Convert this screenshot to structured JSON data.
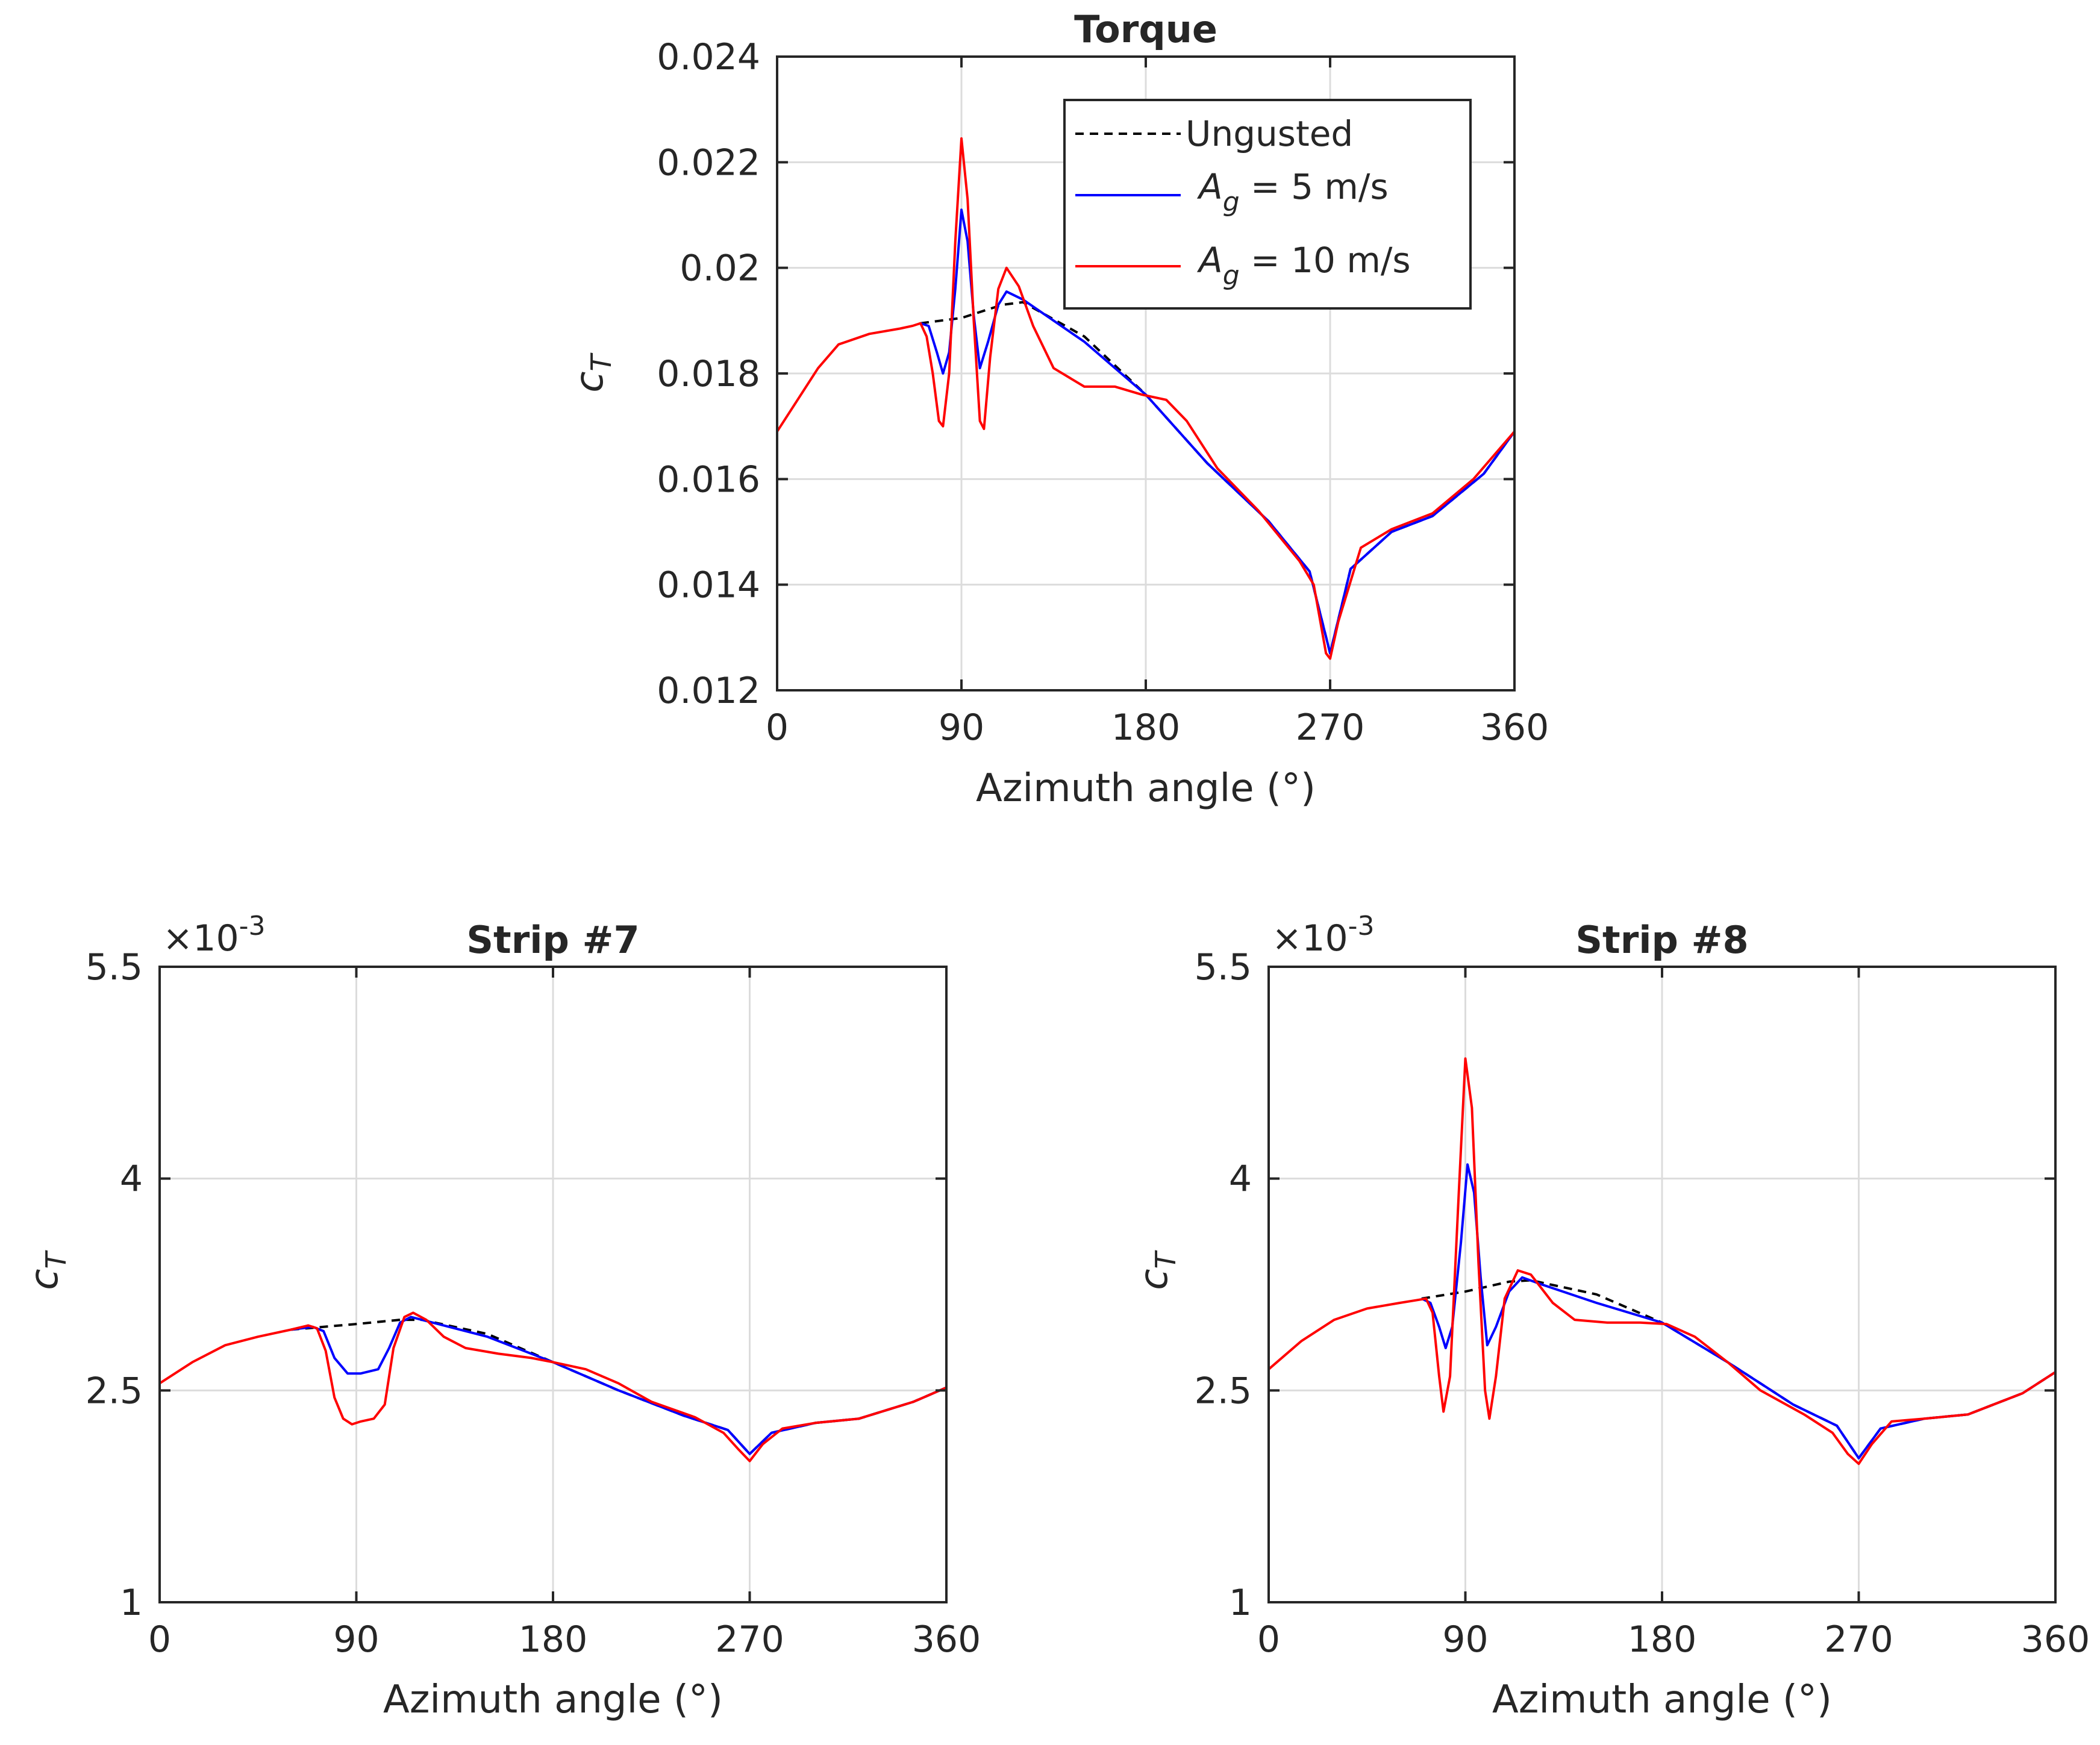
{
  "legend": {
    "entries": [
      {
        "label": "Ungusted",
        "color": "#000000",
        "dash": true
      },
      {
        "label_main": "A",
        "label_sub": "g",
        "label_rest": " = 5 m/s",
        "color": "#0000ff",
        "dash": false
      },
      {
        "label_main": "A",
        "label_sub": "g",
        "label_rest": " = 10 m/s",
        "color": "#ff0000",
        "dash": false
      }
    ]
  },
  "chart_data": [
    {
      "type": "line",
      "title": "Torque",
      "xlabel": "Azimuth angle (°)",
      "ylabel_main": "c",
      "ylabel_sub": "T",
      "multiplier": "",
      "xlim": [
        0,
        360
      ],
      "ylim": [
        0.012,
        0.024
      ],
      "xticks": [
        0,
        90,
        180,
        270,
        360
      ],
      "xtick_labels": [
        "0",
        "90",
        "180",
        "270",
        "360"
      ],
      "yticks": [
        0.012,
        0.014,
        0.016,
        0.018,
        0.02,
        0.022,
        0.024
      ],
      "ytick_labels": [
        "0.012",
        "0.014",
        "0.016",
        "0.018",
        "0.02",
        "0.022",
        "0.024"
      ],
      "grid": true,
      "legend_position": "top-right",
      "series": [
        {
          "name": "Ungusted",
          "color": "#000000",
          "dash": true,
          "points": [
            [
              70,
              0.01895
            ],
            [
              90,
              0.01905
            ],
            [
              110,
              0.0193
            ],
            [
              120,
              0.01935
            ],
            [
              150,
              0.0187
            ],
            [
              180,
              0.0176
            ],
            [
              210,
              0.0163
            ],
            [
              240,
              0.0152
            ],
            [
              260,
              0.01425
            ],
            [
              270,
              0.0127
            ],
            [
              280,
              0.0143
            ],
            [
              300,
              0.015
            ],
            [
              320,
              0.0153
            ],
            [
              345,
              0.0161
            ],
            [
              360,
              0.0169
            ]
          ]
        },
        {
          "name": "A_g = 5 m/s",
          "color": "#0000ff",
          "dash": false,
          "points": [
            [
              70,
              0.01895
            ],
            [
              74,
              0.0189
            ],
            [
              78,
              0.0184
            ],
            [
              81,
              0.018
            ],
            [
              84,
              0.0184
            ],
            [
              87,
              0.0196
            ],
            [
              90,
              0.0211
            ],
            [
              93,
              0.0205
            ],
            [
              96,
              0.0191
            ],
            [
              99,
              0.0181
            ],
            [
              103,
              0.0186
            ],
            [
              108,
              0.0193
            ],
            [
              112,
              0.01955
            ],
            [
              120,
              0.0194
            ],
            [
              150,
              0.0186
            ],
            [
              180,
              0.0176
            ],
            [
              210,
              0.0163
            ],
            [
              240,
              0.0152
            ],
            [
              260,
              0.01425
            ],
            [
              270,
              0.0127
            ],
            [
              280,
              0.0143
            ],
            [
              300,
              0.015
            ],
            [
              320,
              0.0153
            ],
            [
              345,
              0.0161
            ],
            [
              360,
              0.0169
            ]
          ]
        },
        {
          "name": "A_g = 10 m/s",
          "color": "#ff0000",
          "dash": false,
          "points": [
            [
              0,
              0.0169
            ],
            [
              10,
              0.0175
            ],
            [
              20,
              0.0181
            ],
            [
              30,
              0.01855
            ],
            [
              45,
              0.01875
            ],
            [
              60,
              0.01885
            ],
            [
              66,
              0.0189
            ],
            [
              70,
              0.01895
            ],
            [
              73,
              0.0187
            ],
            [
              76,
              0.018
            ],
            [
              79,
              0.0171
            ],
            [
              81,
              0.017
            ],
            [
              84,
              0.018
            ],
            [
              87,
              0.0205
            ],
            [
              90,
              0.02245
            ],
            [
              93,
              0.0213
            ],
            [
              96,
              0.019
            ],
            [
              99,
              0.0171
            ],
            [
              101,
              0.01695
            ],
            [
              104,
              0.0183
            ],
            [
              108,
              0.0196
            ],
            [
              112,
              0.02
            ],
            [
              118,
              0.01965
            ],
            [
              125,
              0.0189
            ],
            [
              135,
              0.0181
            ],
            [
              150,
              0.01775
            ],
            [
              165,
              0.01775
            ],
            [
              178,
              0.0176
            ],
            [
              190,
              0.0175
            ],
            [
              200,
              0.0171
            ],
            [
              215,
              0.0162
            ],
            [
              235,
              0.0154
            ],
            [
              255,
              0.01445
            ],
            [
              262,
              0.014
            ],
            [
              268,
              0.0127
            ],
            [
              270,
              0.0126
            ],
            [
              274,
              0.0133
            ],
            [
              285,
              0.0147
            ],
            [
              300,
              0.01505
            ],
            [
              320,
              0.01535
            ],
            [
              340,
              0.016
            ],
            [
              360,
              0.0169
            ]
          ]
        }
      ]
    },
    {
      "type": "line",
      "title": "Strip #7",
      "xlabel": "Azimuth angle (°)",
      "ylabel_main": "c",
      "ylabel_sub": "T",
      "multiplier": "×10",
      "multiplier_exp": "-3",
      "xlim": [
        0,
        360
      ],
      "ylim": [
        1,
        5.5
      ],
      "xticks": [
        0,
        90,
        180,
        270,
        360
      ],
      "xtick_labels": [
        "0",
        "90",
        "180",
        "270",
        "360"
      ],
      "yticks": [
        1,
        2.5,
        4,
        5.5
      ],
      "ytick_labels": [
        "1",
        "2.5",
        "4",
        "5.5"
      ],
      "grid": true,
      "series": [
        {
          "name": "Ungusted",
          "color": "#000000",
          "dash": true,
          "points": [
            [
              60,
              2.93
            ],
            [
              90,
              2.97
            ],
            [
              110,
              3.0
            ],
            [
              120,
              3.0
            ],
            [
              150,
              2.9
            ],
            [
              180,
              2.7
            ],
            [
              210,
              2.5
            ],
            [
              240,
              2.32
            ],
            [
              260,
              2.22
            ],
            [
              270,
              2.05
            ],
            [
              280,
              2.2
            ],
            [
              300,
              2.27
            ],
            [
              320,
              2.3
            ],
            [
              345,
              2.42
            ],
            [
              360,
              2.52
            ]
          ]
        },
        {
          "name": "A_g = 5 m/s",
          "color": "#0000ff",
          "dash": false,
          "points": [
            [
              60,
              2.93
            ],
            [
              70,
              2.95
            ],
            [
              75,
              2.92
            ],
            [
              80,
              2.73
            ],
            [
              86,
              2.62
            ],
            [
              92,
              2.62
            ],
            [
              100,
              2.65
            ],
            [
              105,
              2.8
            ],
            [
              110,
              2.98
            ],
            [
              115,
              3.02
            ],
            [
              125,
              2.98
            ],
            [
              150,
              2.88
            ],
            [
              180,
              2.7
            ],
            [
              210,
              2.5
            ],
            [
              240,
              2.32
            ],
            [
              260,
              2.22
            ],
            [
              270,
              2.05
            ],
            [
              280,
              2.2
            ],
            [
              300,
              2.27
            ],
            [
              320,
              2.3
            ],
            [
              345,
              2.42
            ],
            [
              360,
              2.52
            ]
          ]
        },
        {
          "name": "A_g = 10 m/s",
          "color": "#ff0000",
          "dash": false,
          "points": [
            [
              0,
              2.55
            ],
            [
              15,
              2.7
            ],
            [
              30,
              2.82
            ],
            [
              45,
              2.88
            ],
            [
              60,
              2.93
            ],
            [
              68,
              2.96
            ],
            [
              72,
              2.94
            ],
            [
              76,
              2.78
            ],
            [
              80,
              2.45
            ],
            [
              84,
              2.3
            ],
            [
              88,
              2.26
            ],
            [
              92,
              2.28
            ],
            [
              98,
              2.3
            ],
            [
              103,
              2.4
            ],
            [
              107,
              2.8
            ],
            [
              112,
              3.02
            ],
            [
              116,
              3.05
            ],
            [
              122,
              3.0
            ],
            [
              130,
              2.88
            ],
            [
              140,
              2.8
            ],
            [
              155,
              2.76
            ],
            [
              170,
              2.73
            ],
            [
              180,
              2.7
            ],
            [
              195,
              2.65
            ],
            [
              210,
              2.55
            ],
            [
              225,
              2.42
            ],
            [
              245,
              2.31
            ],
            [
              258,
              2.2
            ],
            [
              265,
              2.08
            ],
            [
              270,
              2.0
            ],
            [
              276,
              2.12
            ],
            [
              285,
              2.23
            ],
            [
              300,
              2.27
            ],
            [
              320,
              2.3
            ],
            [
              345,
              2.42
            ],
            [
              360,
              2.52
            ]
          ]
        }
      ]
    },
    {
      "type": "line",
      "title": "Strip #8",
      "xlabel": "Azimuth angle (°)",
      "ylabel_main": "c",
      "ylabel_sub": "T",
      "multiplier": "×10",
      "multiplier_exp": "-3",
      "xlim": [
        0,
        360
      ],
      "ylim": [
        1,
        5.5
      ],
      "xticks": [
        0,
        90,
        180,
        270,
        360
      ],
      "xtick_labels": [
        "0",
        "90",
        "180",
        "270",
        "360"
      ],
      "yticks": [
        1,
        2.5,
        4,
        5.5
      ],
      "ytick_labels": [
        "1",
        "2.5",
        "4",
        "5.5"
      ],
      "grid": true,
      "series": [
        {
          "name": "Ungusted",
          "color": "#000000",
          "dash": true,
          "points": [
            [
              70,
              3.15
            ],
            [
              90,
              3.2
            ],
            [
              110,
              3.27
            ],
            [
              120,
              3.28
            ],
            [
              150,
              3.18
            ],
            [
              180,
              2.98
            ],
            [
              210,
              2.7
            ],
            [
              240,
              2.4
            ],
            [
              260,
              2.25
            ],
            [
              270,
              2.02
            ],
            [
              280,
              2.23
            ],
            [
              300,
              2.3
            ],
            [
              320,
              2.33
            ],
            [
              345,
              2.48
            ],
            [
              360,
              2.63
            ]
          ]
        },
        {
          "name": "A_g = 5 m/s",
          "color": "#0000ff",
          "dash": false,
          "points": [
            [
              70,
              3.15
            ],
            [
              74,
              3.12
            ],
            [
              78,
              2.95
            ],
            [
              81,
              2.8
            ],
            [
              84,
              2.95
            ],
            [
              88,
              3.55
            ],
            [
              91,
              4.1
            ],
            [
              94,
              3.9
            ],
            [
              97,
              3.3
            ],
            [
              100,
              2.82
            ],
            [
              104,
              2.95
            ],
            [
              110,
              3.2
            ],
            [
              116,
              3.3
            ],
            [
              125,
              3.25
            ],
            [
              150,
              3.12
            ],
            [
              180,
              2.98
            ],
            [
              210,
              2.7
            ],
            [
              240,
              2.4
            ],
            [
              260,
              2.25
            ],
            [
              270,
              2.02
            ],
            [
              280,
              2.23
            ],
            [
              300,
              2.3
            ],
            [
              320,
              2.33
            ],
            [
              345,
              2.48
            ],
            [
              360,
              2.63
            ]
          ]
        },
        {
          "name": "A_g = 10 m/s",
          "color": "#ff0000",
          "dash": false,
          "points": [
            [
              0,
              2.65
            ],
            [
              15,
              2.85
            ],
            [
              30,
              3.0
            ],
            [
              45,
              3.08
            ],
            [
              60,
              3.12
            ],
            [
              68,
              3.14
            ],
            [
              72,
              3.15
            ],
            [
              75,
              3.05
            ],
            [
              78,
              2.6
            ],
            [
              80,
              2.35
            ],
            [
              83,
              2.6
            ],
            [
              87,
              3.9
            ],
            [
              90,
              4.85
            ],
            [
              93,
              4.5
            ],
            [
              96,
              3.4
            ],
            [
              99,
              2.5
            ],
            [
              101,
              2.3
            ],
            [
              104,
              2.6
            ],
            [
              108,
              3.15
            ],
            [
              114,
              3.35
            ],
            [
              120,
              3.32
            ],
            [
              130,
              3.12
            ],
            [
              140,
              3.0
            ],
            [
              155,
              2.98
            ],
            [
              170,
              2.98
            ],
            [
              182,
              2.97
            ],
            [
              195,
              2.88
            ],
            [
              210,
              2.7
            ],
            [
              225,
              2.5
            ],
            [
              245,
              2.33
            ],
            [
              258,
              2.2
            ],
            [
              265,
              2.05
            ],
            [
              270,
              1.98
            ],
            [
              276,
              2.12
            ],
            [
              285,
              2.28
            ],
            [
              300,
              2.3
            ],
            [
              320,
              2.33
            ],
            [
              345,
              2.48
            ],
            [
              360,
              2.63
            ]
          ]
        }
      ]
    }
  ]
}
